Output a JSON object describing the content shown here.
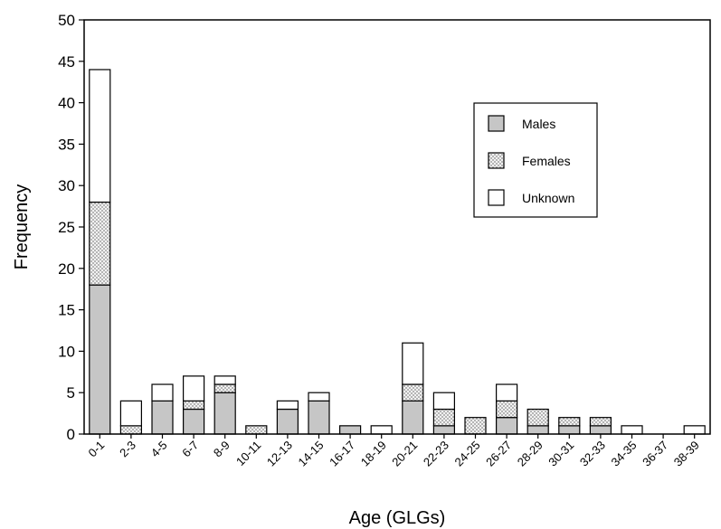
{
  "chart_data": {
    "type": "bar",
    "stacked": true,
    "title": "",
    "xlabel": "Age (GLGs)",
    "ylabel": "Frequency",
    "ylim": [
      0,
      50
    ],
    "yticks": [
      0,
      5,
      10,
      15,
      20,
      25,
      30,
      35,
      40,
      45,
      50
    ],
    "categories": [
      "0-1",
      "2-3",
      "4-5",
      "6-7",
      "8-9",
      "10-11",
      "12-13",
      "14-15",
      "16-17",
      "18-19",
      "20-21",
      "22-23",
      "24-25",
      "26-27",
      "28-29",
      "30-31",
      "32-33",
      "34-35",
      "36-37",
      "38-39"
    ],
    "series": [
      {
        "name": "Males",
        "values": [
          18,
          0,
          4,
          3,
          5,
          0,
          3,
          4,
          1,
          0,
          4,
          1,
          0,
          2,
          1,
          1,
          1,
          0,
          0,
          0
        ]
      },
      {
        "name": "Females",
        "values": [
          10,
          1,
          0,
          1,
          1,
          1,
          0,
          0,
          0,
          0,
          2,
          2,
          2,
          2,
          2,
          1,
          1,
          0,
          0,
          0
        ]
      },
      {
        "name": "Unknown",
        "values": [
          16,
          3,
          2,
          3,
          1,
          0,
          1,
          1,
          0,
          1,
          5,
          2,
          0,
          2,
          0,
          0,
          0,
          1,
          0,
          1
        ]
      }
    ],
    "legend_position": "top-right",
    "colors": {
      "Males": "#c8c8c8",
      "Females": "#d8d8d8",
      "Unknown": "#ffffff"
    },
    "grid": false
  }
}
